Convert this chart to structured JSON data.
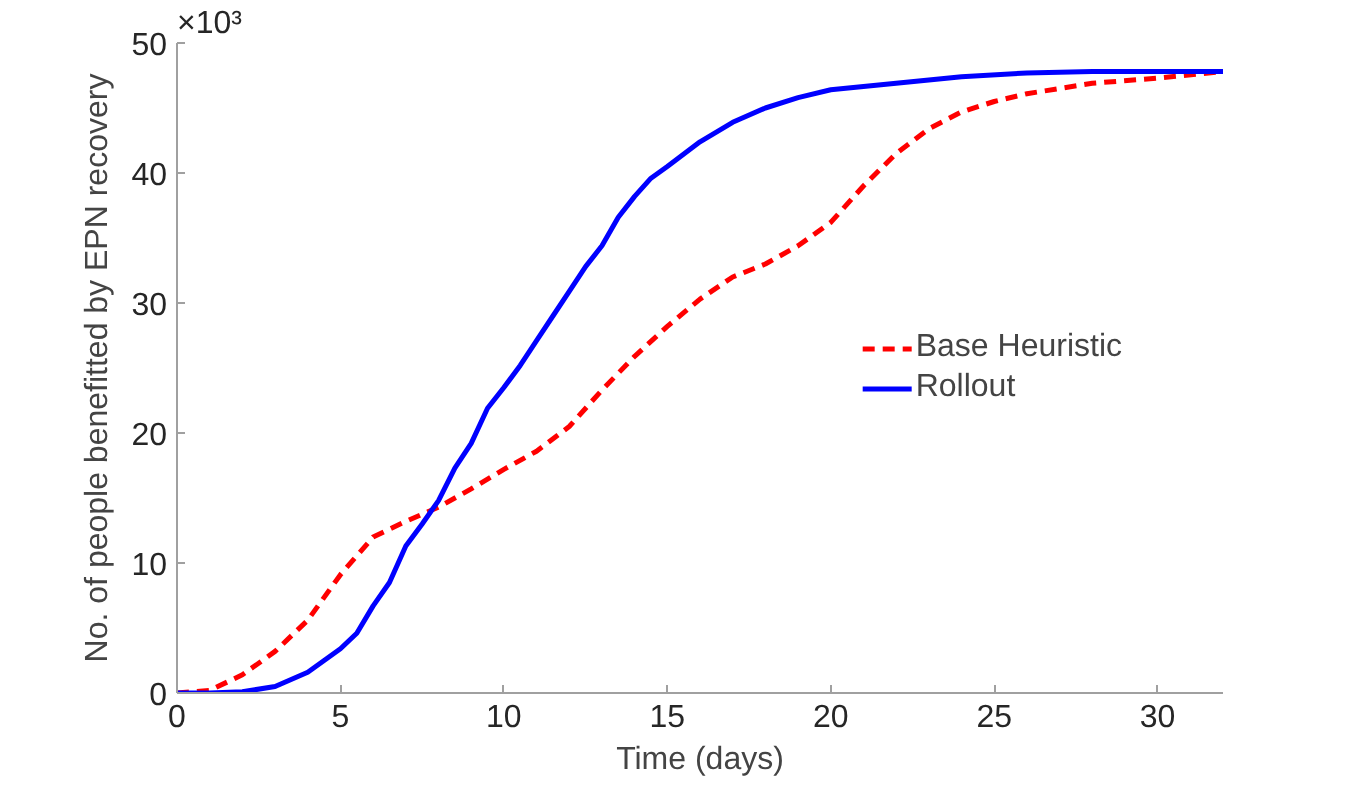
{
  "chart_data": {
    "type": "line",
    "xlabel": "Time (days)",
    "ylabel": "No. of people benefitted by EPN recovery",
    "annotations": [
      "×10³"
    ],
    "xlim": [
      0,
      32
    ],
    "ylim": [
      0,
      50
    ],
    "xticks": [
      0,
      5,
      10,
      15,
      20,
      25,
      30
    ],
    "yticks": [
      0,
      10,
      20,
      30,
      40,
      50
    ],
    "grid": false,
    "legend": "right",
    "marker": "none",
    "series": [
      {
        "name": "Base Heuristic",
        "color": "#ff0000",
        "line_style": "dashed",
        "x": [
          0,
          1,
          2,
          3,
          4,
          5,
          6,
          7,
          8,
          9,
          10,
          11,
          12,
          13,
          14,
          15,
          16,
          17,
          18,
          19,
          20,
          21,
          22,
          23,
          24,
          25,
          26,
          28,
          30,
          32
        ],
        "values": [
          0,
          0.2,
          1.4,
          3.2,
          5.6,
          9.1,
          12.0,
          13.2,
          14.3,
          15.7,
          17.2,
          18.6,
          20.5,
          23.3,
          25.9,
          28.2,
          30.3,
          32.0,
          33.0,
          34.4,
          36.2,
          39.0,
          41.5,
          43.4,
          44.7,
          45.5,
          46.1,
          46.9,
          47.3,
          47.8
        ]
      },
      {
        "name": "Rollout",
        "color": "#0000ff",
        "line_style": "solid",
        "x": [
          0,
          1,
          2,
          3,
          4,
          4.5,
          5,
          5.5,
          6,
          6.5,
          7,
          7.5,
          8,
          8.5,
          9,
          9.5,
          10,
          10.5,
          11,
          11.5,
          12,
          12.5,
          13,
          13.5,
          14,
          14.5,
          15,
          16,
          17,
          18,
          19,
          20,
          22,
          24,
          26,
          28,
          32
        ],
        "values": [
          0,
          0,
          0.1,
          0.5,
          1.6,
          2.5,
          3.4,
          4.6,
          6.7,
          8.5,
          11.3,
          13.0,
          14.8,
          17.3,
          19.2,
          21.9,
          23.5,
          25.2,
          27.1,
          29.0,
          30.9,
          32.8,
          34.4,
          36.6,
          38.2,
          39.6,
          40.5,
          42.4,
          43.9,
          45.0,
          45.8,
          46.4,
          46.9,
          47.4,
          47.7,
          47.8,
          47.8
        ]
      }
    ]
  }
}
